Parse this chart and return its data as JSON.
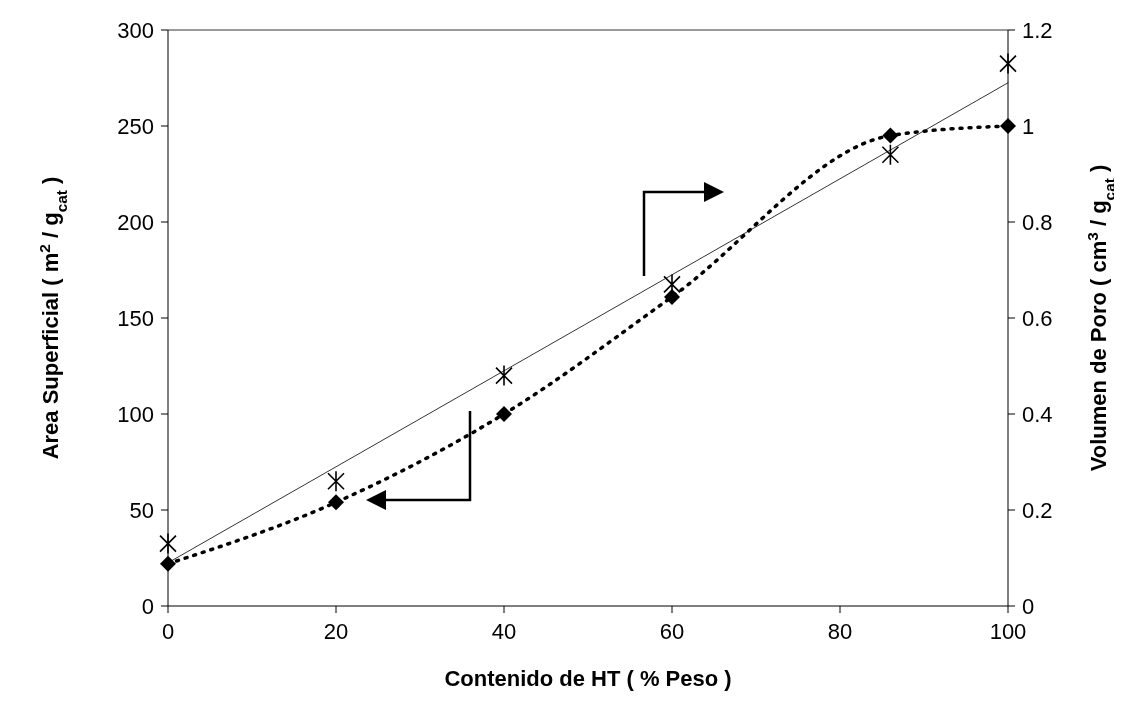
{
  "chart_data": {
    "type": "line",
    "xlabel": "Contenido de HT ( % Peso )",
    "ylabel": "Area Superficial ( m$^{2}$ / g$_{cat}$ )",
    "y2label": "Volumen de Poro ( cm$^{3}$ / g$_{cat}$ )",
    "x": [
      0,
      20,
      40,
      60,
      86,
      100
    ],
    "series": [
      {
        "color": "#000000",
        "marker": "diamond",
        "line_style": "dotted",
        "values": [
          22,
          54,
          100,
          161,
          245,
          250
        ]
      },
      {
        "type": "scatter",
        "color": "#000000",
        "marker": "cross",
        "axis": "y2",
        "values": [
          0.13,
          0.26,
          0.48,
          0.67,
          0.94,
          1.13
        ]
      },
      {
        "type": "line",
        "color": "#000000",
        "marker": "none",
        "line_style": "solid",
        "axis": "y2",
        "x": [
          0,
          100
        ],
        "values": [
          0.09,
          1.09
        ]
      }
    ],
    "xlim": [
      0,
      100
    ],
    "xticks": [
      0,
      20,
      40,
      60,
      80,
      100
    ],
    "ylim": [
      0,
      300
    ],
    "yticks": [
      0,
      50,
      100,
      150,
      200,
      250,
      300
    ],
    "y2lim": [
      0,
      1.2
    ],
    "y2ticks": [
      0,
      0.2,
      0.4,
      0.6,
      0.8,
      1,
      1.2
    ],
    "grid": false
  }
}
